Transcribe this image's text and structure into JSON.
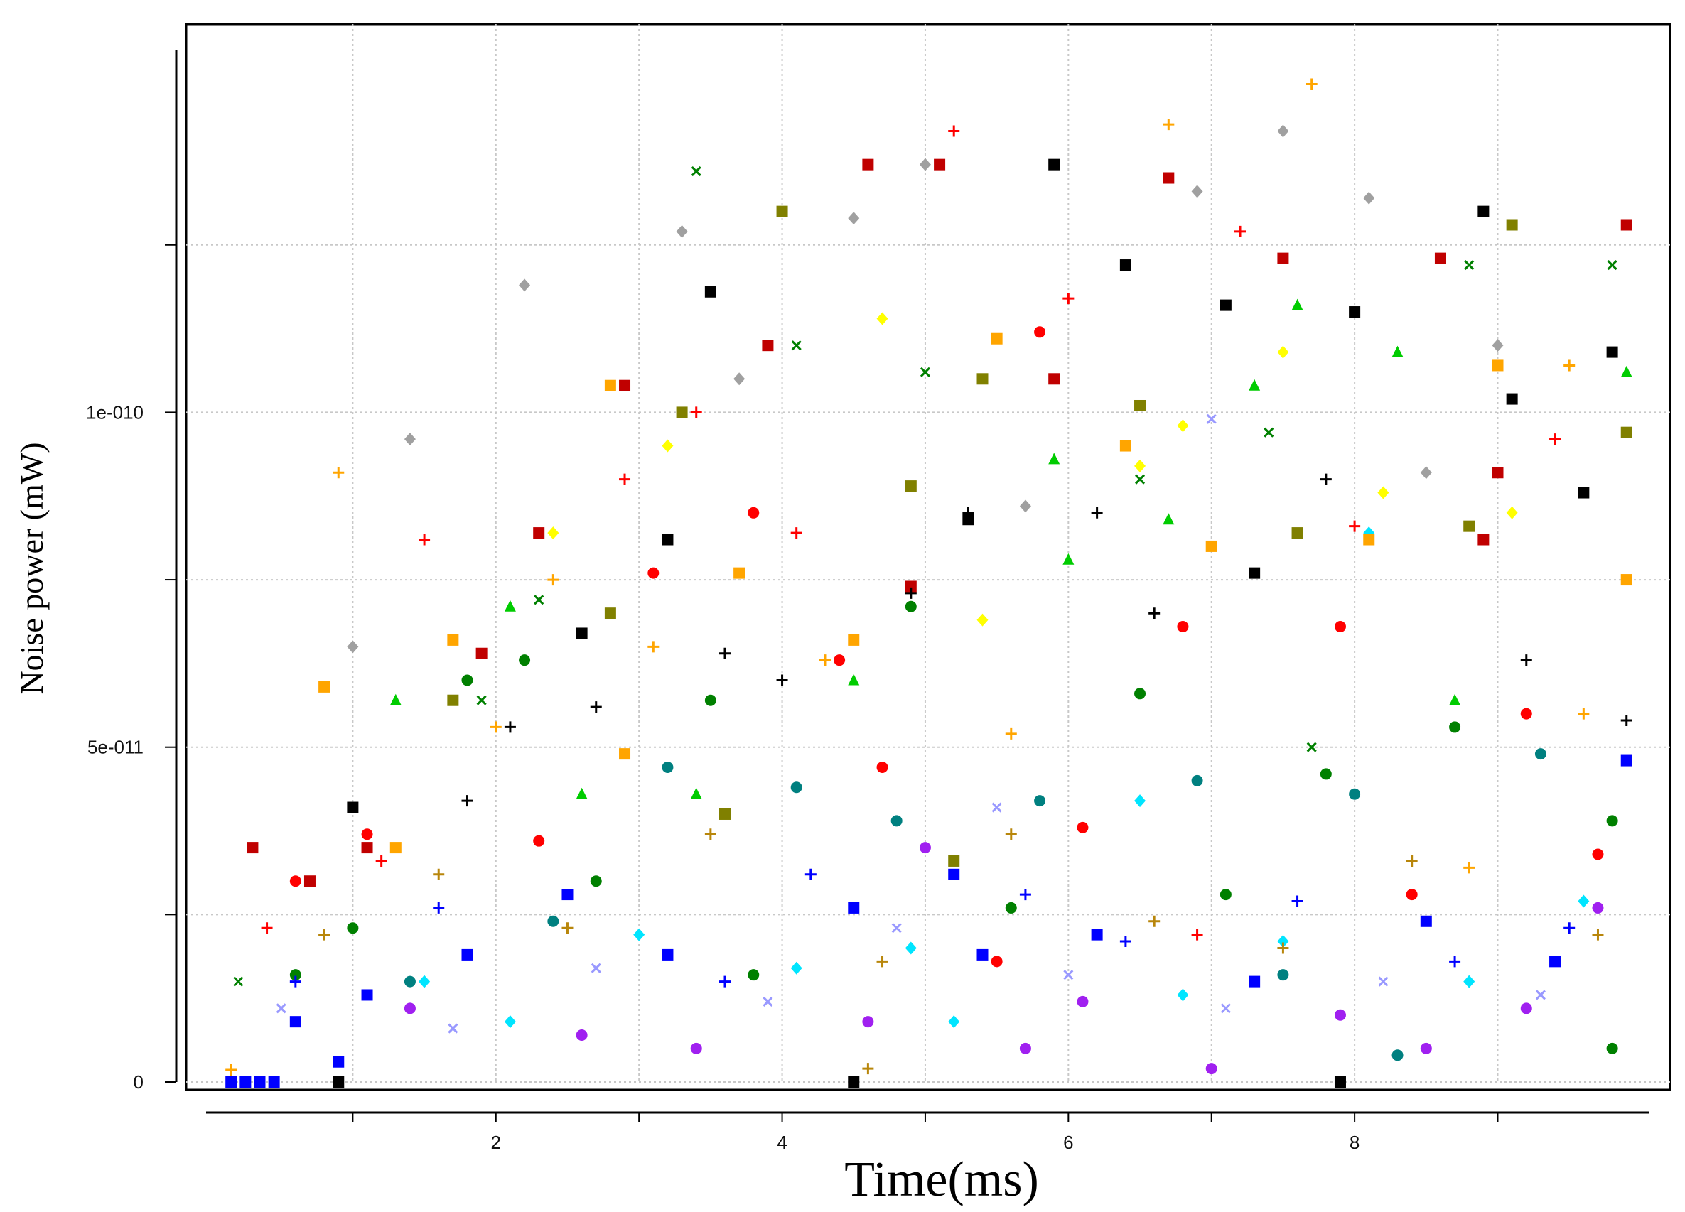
{
  "chart_data": {
    "type": "scatter",
    "title": "",
    "xlabel": "Time(ms)",
    "ylabel": "Noise power (mW)",
    "xlim": [
      0,
      10
    ],
    "ylim": [
      0,
      1.55e-10
    ],
    "x_ticks": [
      {
        "value": 1,
        "label": ""
      },
      {
        "value": 2,
        "label": "2"
      },
      {
        "value": 3,
        "label": ""
      },
      {
        "value": 4,
        "label": "4"
      },
      {
        "value": 5,
        "label": ""
      },
      {
        "value": 6,
        "label": "6"
      },
      {
        "value": 7,
        "label": ""
      },
      {
        "value": 8,
        "label": "8"
      },
      {
        "value": 9,
        "label": ""
      }
    ],
    "y_ticks": [
      {
        "value": 0,
        "label": "0"
      },
      {
        "value": 2.5e-11,
        "label": ""
      },
      {
        "value": 5e-11,
        "label": "5e-011"
      },
      {
        "value": 7.5e-11,
        "label": ""
      },
      {
        "value": 1e-10,
        "label": "1e-010"
      },
      {
        "value": 1.25e-10,
        "label": ""
      }
    ],
    "grid": true,
    "legend": "none",
    "marker_palette": [
      "#ff0000",
      "#0000ff",
      "#00cc00",
      "#008000",
      "#ffa500",
      "#c00000",
      "#000000",
      "#808000",
      "#a0a0a0",
      "#00e5ff",
      "#a020f0",
      "#ffff00",
      "#008080",
      "#9999ff",
      "#b8860b"
    ],
    "marker_shapes": [
      "square",
      "circle",
      "triangle",
      "diamond",
      "plus",
      "cross"
    ],
    "series": [
      {
        "name": "",
        "color": "#ffa500",
        "marker": "plus",
        "points": [
          [
            0.15,
            1.8e-12
          ],
          [
            0.9,
            9.1e-11
          ],
          [
            2.0,
            5.3e-11
          ],
          [
            2.4,
            7.5e-11
          ],
          [
            3.1,
            6.5e-11
          ],
          [
            4.3,
            6.3e-11
          ],
          [
            5.6,
            5.2e-11
          ],
          [
            6.7,
            1.43e-10
          ],
          [
            7.7,
            1.49e-10
          ],
          [
            8.8,
            3.2e-11
          ],
          [
            9.5,
            1.07e-10
          ],
          [
            9.6,
            5.5e-11
          ]
        ]
      },
      {
        "name": "",
        "color": "#ff0000",
        "marker": "plus",
        "points": [
          [
            1.5,
            8.1e-11
          ],
          [
            2.9,
            9e-11
          ],
          [
            3.4,
            1e-10
          ],
          [
            4.1,
            8.2e-11
          ],
          [
            5.2,
            1.42e-10
          ],
          [
            6.0,
            1.17e-10
          ],
          [
            7.2,
            1.27e-10
          ],
          [
            8.0,
            8.3e-11
          ],
          [
            9.4,
            9.6e-11
          ],
          [
            0.4,
            2.3e-11
          ],
          [
            1.2,
            3.3e-11
          ],
          [
            6.9,
            2.2e-11
          ]
        ]
      },
      {
        "name": "",
        "color": "#c00000",
        "marker": "square",
        "points": [
          [
            0.3,
            3.5e-11
          ],
          [
            0.7,
            3e-11
          ],
          [
            1.1,
            3.5e-11
          ],
          [
            2.9,
            1.04e-10
          ],
          [
            3.9,
            1.1e-10
          ],
          [
            4.6,
            1.37e-10
          ],
          [
            5.1,
            1.37e-10
          ],
          [
            5.9,
            1.05e-10
          ],
          [
            6.7,
            1.35e-10
          ],
          [
            7.5,
            1.23e-10
          ],
          [
            8.6,
            1.23e-10
          ],
          [
            9.9,
            1.28e-10
          ],
          [
            2.3,
            8.2e-11
          ],
          [
            1.9,
            6.4e-11
          ],
          [
            4.9,
            7.4e-11
          ],
          [
            8.9,
            8.1e-11
          ],
          [
            9.0,
            9.1e-11
          ]
        ]
      },
      {
        "name": "",
        "color": "#000000",
        "marker": "square",
        "points": [
          [
            3.5,
            1.18e-10
          ],
          [
            5.9,
            1.37e-10
          ],
          [
            6.4,
            1.22e-10
          ],
          [
            7.1,
            1.16e-10
          ],
          [
            8.0,
            1.15e-10
          ],
          [
            8.9,
            1.3e-10
          ],
          [
            9.8,
            1.09e-10
          ],
          [
            5.3,
            8.4e-11
          ],
          [
            9.6,
            8.8e-11
          ],
          [
            3.2,
            8.1e-11
          ],
          [
            1.0,
            4.1e-11
          ],
          [
            2.6,
            6.7e-11
          ],
          [
            7.3,
            7.6e-11
          ],
          [
            9.1,
            1.02e-10
          ],
          [
            0.9,
            0
          ],
          [
            4.5,
            0
          ],
          [
            7.9,
            0
          ]
        ]
      },
      {
        "name": "",
        "color": "#808000",
        "marker": "square",
        "points": [
          [
            4.0,
            1.3e-10
          ],
          [
            3.3,
            1e-10
          ],
          [
            5.4,
            1.05e-10
          ],
          [
            6.5,
            1.01e-10
          ],
          [
            9.1,
            1.28e-10
          ],
          [
            9.9,
            9.7e-11
          ],
          [
            2.8,
            7e-11
          ],
          [
            1.7,
            5.7e-11
          ],
          [
            4.9,
            8.9e-11
          ],
          [
            7.6,
            8.2e-11
          ],
          [
            8.8,
            8.3e-11
          ],
          [
            3.6,
            4e-11
          ],
          [
            5.2,
            3.3e-11
          ]
        ]
      },
      {
        "name": "",
        "color": "#a0a0a0",
        "marker": "diamond",
        "points": [
          [
            1.0,
            6.5e-11
          ],
          [
            1.4,
            9.6e-11
          ],
          [
            2.2,
            1.19e-10
          ],
          [
            3.3,
            1.27e-10
          ],
          [
            4.5,
            1.29e-10
          ],
          [
            5.0,
            1.37e-10
          ],
          [
            6.9,
            1.33e-10
          ],
          [
            7.5,
            1.42e-10
          ],
          [
            8.1,
            1.32e-10
          ],
          [
            9.0,
            1.1e-10
          ],
          [
            3.7,
            1.05e-10
          ],
          [
            5.7,
            8.6e-11
          ],
          [
            8.5,
            9.1e-11
          ]
        ]
      },
      {
        "name": "",
        "color": "#00cc00",
        "marker": "triangle",
        "points": [
          [
            1.3,
            5.7e-11
          ],
          [
            2.1,
            7.1e-11
          ],
          [
            5.9,
            9.3e-11
          ],
          [
            6.7,
            8.4e-11
          ],
          [
            7.3,
            1.04e-10
          ],
          [
            7.6,
            1.16e-10
          ],
          [
            8.3,
            1.09e-10
          ],
          [
            9.9,
            1.06e-10
          ],
          [
            4.5,
            6e-11
          ],
          [
            6.0,
            7.8e-11
          ],
          [
            3.4,
            4.3e-11
          ],
          [
            8.7,
            5.7e-11
          ],
          [
            2.6,
            4.3e-11
          ]
        ]
      },
      {
        "name": "",
        "color": "#ffff00",
        "marker": "diamond",
        "points": [
          [
            4.7,
            1.14e-10
          ],
          [
            6.8,
            9.8e-11
          ],
          [
            7.5,
            1.09e-10
          ],
          [
            5.4,
            6.9e-11
          ],
          [
            6.5,
            9.2e-11
          ],
          [
            8.2,
            8.8e-11
          ],
          [
            9.1,
            8.5e-11
          ],
          [
            2.4,
            8.2e-11
          ],
          [
            3.2,
            9.5e-11
          ]
        ]
      },
      {
        "name": "",
        "color": "#ff0000",
        "marker": "circle",
        "points": [
          [
            5.8,
            1.12e-10
          ],
          [
            3.8,
            8.5e-11
          ],
          [
            3.1,
            7.6e-11
          ],
          [
            6.8,
            6.8e-11
          ],
          [
            4.4,
            6.3e-11
          ],
          [
            7.9,
            6.8e-11
          ],
          [
            9.2,
            5.5e-11
          ],
          [
            1.1,
            3.7e-11
          ],
          [
            2.3,
            3.6e-11
          ],
          [
            4.7,
            4.7e-11
          ],
          [
            6.1,
            3.8e-11
          ],
          [
            8.4,
            2.8e-11
          ],
          [
            0.6,
            3e-11
          ],
          [
            5.5,
            1.8e-11
          ],
          [
            9.7,
            3.4e-11
          ]
        ]
      },
      {
        "name": "",
        "color": "#008000",
        "marker": "circle",
        "points": [
          [
            1.8,
            6e-11
          ],
          [
            2.2,
            6.3e-11
          ],
          [
            3.5,
            5.7e-11
          ],
          [
            4.9,
            7.1e-11
          ],
          [
            6.5,
            5.8e-11
          ],
          [
            7.8,
            4.6e-11
          ],
          [
            8.7,
            5.3e-11
          ],
          [
            9.8,
            3.9e-11
          ],
          [
            1.0,
            2.3e-11
          ],
          [
            2.7,
            3e-11
          ],
          [
            5.6,
            2.6e-11
          ],
          [
            7.1,
            2.8e-11
          ],
          [
            0.6,
            1.6e-11
          ],
          [
            3.8,
            1.6e-11
          ],
          [
            9.8,
            5e-12
          ]
        ]
      },
      {
        "name": "",
        "color": "#0000ff",
        "marker": "square",
        "points": [
          [
            0.35,
            0
          ],
          [
            0.6,
            9e-12
          ],
          [
            0.9,
            3e-12
          ],
          [
            1.1,
            1.3e-11
          ],
          [
            1.8,
            1.9e-11
          ],
          [
            2.5,
            2.8e-11
          ],
          [
            3.2,
            1.9e-11
          ],
          [
            4.5,
            2.6e-11
          ],
          [
            5.4,
            1.9e-11
          ],
          [
            6.2,
            2.2e-11
          ],
          [
            7.3,
            1.5e-11
          ],
          [
            8.5,
            2.4e-11
          ],
          [
            9.4,
            1.8e-11
          ],
          [
            9.9,
            4.8e-11
          ],
          [
            5.2,
            3.1e-11
          ],
          [
            0.15,
            0
          ],
          [
            0.25,
            0
          ],
          [
            0.45,
            0
          ]
        ]
      },
      {
        "name": "",
        "color": "#0000ff",
        "marker": "plus",
        "points": [
          [
            0.6,
            1.5e-11
          ],
          [
            1.6,
            2.6e-11
          ],
          [
            3.6,
            1.5e-11
          ],
          [
            4.2,
            3.1e-11
          ],
          [
            5.7,
            2.8e-11
          ],
          [
            6.4,
            2.1e-11
          ],
          [
            7.6,
            2.7e-11
          ],
          [
            8.7,
            1.8e-11
          ],
          [
            9.5,
            2.3e-11
          ]
        ]
      },
      {
        "name": "",
        "color": "#00e5ff",
        "marker": "diamond",
        "points": [
          [
            1.5,
            1.5e-11
          ],
          [
            2.1,
            9e-12
          ],
          [
            3.0,
            2.2e-11
          ],
          [
            4.1,
            1.7e-11
          ],
          [
            5.2,
            9e-12
          ],
          [
            6.8,
            1.3e-11
          ],
          [
            7.5,
            2.1e-11
          ],
          [
            8.8,
            1.5e-11
          ],
          [
            9.6,
            2.7e-11
          ],
          [
            8.1,
            8.2e-11
          ],
          [
            6.5,
            4.2e-11
          ],
          [
            4.9,
            2e-11
          ]
        ]
      },
      {
        "name": "",
        "color": "#a020f0",
        "marker": "circle",
        "points": [
          [
            1.4,
            1.1e-11
          ],
          [
            2.6,
            7e-12
          ],
          [
            3.4,
            5e-12
          ],
          [
            4.6,
            9e-12
          ],
          [
            5.7,
            5e-12
          ],
          [
            6.1,
            1.2e-11
          ],
          [
            7.0,
            2e-12
          ],
          [
            7.9,
            1e-11
          ],
          [
            8.5,
            5e-12
          ],
          [
            9.2,
            1.1e-11
          ],
          [
            9.7,
            2.6e-11
          ],
          [
            5.0,
            3.5e-11
          ]
        ]
      },
      {
        "name": "",
        "color": "#ffa500",
        "marker": "square",
        "points": [
          [
            0.8,
            5.9e-11
          ],
          [
            1.7,
            6.6e-11
          ],
          [
            2.8,
            1.04e-10
          ],
          [
            3.7,
            7.6e-11
          ],
          [
            4.5,
            6.6e-11
          ],
          [
            5.5,
            1.11e-10
          ],
          [
            6.4,
            9.5e-11
          ],
          [
            7.0,
            8e-11
          ],
          [
            8.1,
            8.1e-11
          ],
          [
            9.0,
            1.07e-10
          ],
          [
            9.9,
            7.5e-11
          ],
          [
            1.3,
            3.5e-11
          ],
          [
            2.9,
            4.9e-11
          ]
        ]
      },
      {
        "name": "",
        "color": "#008080",
        "marker": "circle",
        "points": [
          [
            3.2,
            4.7e-11
          ],
          [
            4.1,
            4.4e-11
          ],
          [
            4.8,
            3.9e-11
          ],
          [
            5.8,
            4.2e-11
          ],
          [
            6.9,
            4.5e-11
          ],
          [
            8.0,
            4.3e-11
          ],
          [
            9.3,
            4.9e-11
          ],
          [
            2.4,
            2.4e-11
          ],
          [
            7.5,
            1.6e-11
          ],
          [
            8.3,
            4e-12
          ],
          [
            1.4,
            1.5e-11
          ]
        ]
      },
      {
        "name": "",
        "color": "#008000",
        "marker": "cross",
        "points": [
          [
            3.4,
            1.36e-10
          ],
          [
            4.1,
            1.1e-10
          ],
          [
            5.0,
            1.06e-10
          ],
          [
            6.5,
            9e-11
          ],
          [
            7.4,
            9.7e-11
          ],
          [
            8.8,
            1.22e-10
          ],
          [
            9.8,
            1.22e-10
          ],
          [
            2.3,
            7.2e-11
          ],
          [
            1.9,
            5.7e-11
          ],
          [
            0.2,
            1.5e-11
          ],
          [
            7.7,
            5e-11
          ]
        ]
      },
      {
        "name": "",
        "color": "#9999ff",
        "marker": "cross",
        "points": [
          [
            0.5,
            1.1e-11
          ],
          [
            1.7,
            8e-12
          ],
          [
            2.7,
            1.7e-11
          ],
          [
            3.9,
            1.2e-11
          ],
          [
            4.8,
            2.3e-11
          ],
          [
            6.0,
            1.6e-11
          ],
          [
            7.1,
            1.1e-11
          ],
          [
            8.2,
            1.5e-11
          ],
          [
            9.3,
            1.3e-11
          ],
          [
            7.0,
            9.9e-11
          ],
          [
            5.5,
            4.1e-11
          ]
        ]
      },
      {
        "name": "",
        "color": "#b8860b",
        "marker": "plus",
        "points": [
          [
            0.8,
            2.2e-11
          ],
          [
            1.6,
            3.1e-11
          ],
          [
            2.5,
            2.3e-11
          ],
          [
            3.5,
            3.7e-11
          ],
          [
            4.7,
            1.8e-11
          ],
          [
            5.6,
            3.7e-11
          ],
          [
            6.6,
            2.4e-11
          ],
          [
            7.5,
            2e-11
          ],
          [
            8.4,
            3.3e-11
          ],
          [
            9.7,
            2.2e-11
          ],
          [
            4.6,
            2e-12
          ]
        ]
      },
      {
        "name": "",
        "color": "#000000",
        "marker": "plus",
        "points": [
          [
            1.8,
            4.2e-11
          ],
          [
            2.1,
            5.3e-11
          ],
          [
            2.7,
            5.6e-11
          ],
          [
            3.6,
            6.4e-11
          ],
          [
            4.0,
            6e-11
          ],
          [
            5.3,
            8.5e-11
          ],
          [
            6.2,
            8.5e-11
          ],
          [
            6.6,
            7e-11
          ],
          [
            7.8,
            9e-11
          ],
          [
            9.2,
            6.3e-11
          ],
          [
            9.9,
            5.4e-11
          ],
          [
            4.9,
            7.3e-11
          ]
        ]
      }
    ]
  }
}
